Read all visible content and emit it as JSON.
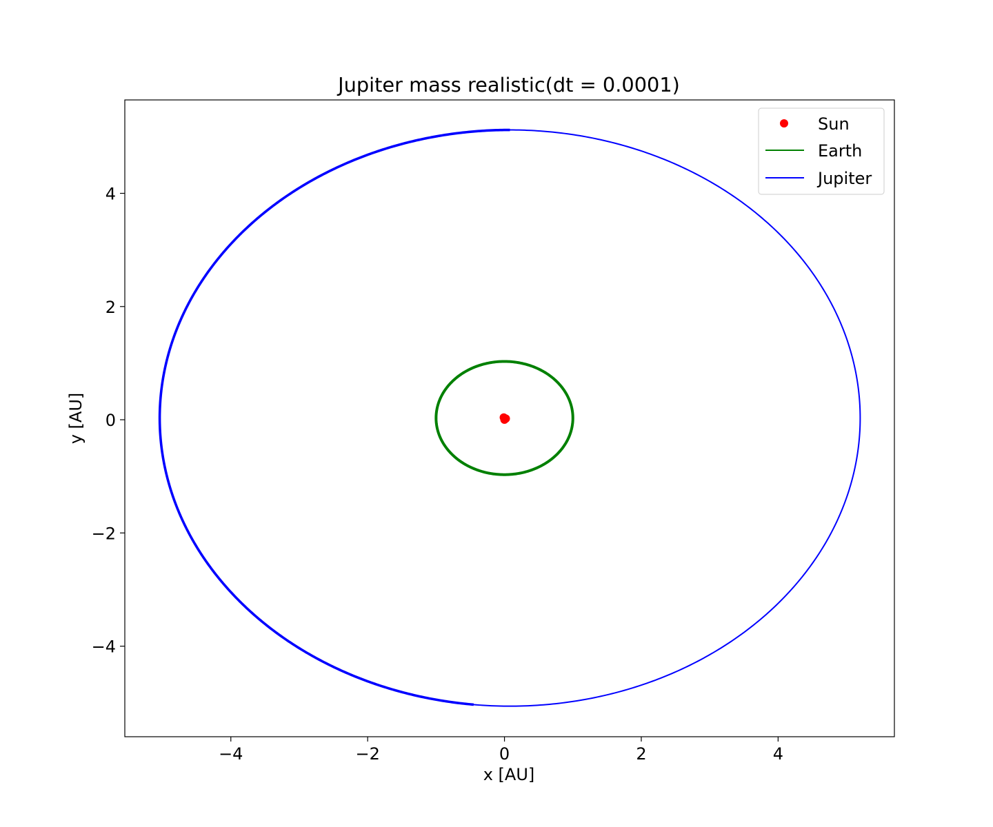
{
  "chart_data": {
    "type": "line",
    "title": "Jupiter mass realistic(dt = 0.0001)",
    "xlabel": "x [AU]",
    "ylabel": "y [AU]",
    "xlim": [
      -5.55,
      5.7
    ],
    "ylim": [
      -5.6,
      5.65
    ],
    "xticks": [
      -4,
      -2,
      0,
      2,
      4
    ],
    "yticks": [
      -4,
      -2,
      0,
      2,
      4
    ],
    "xtick_labels": [
      "−4",
      "−2",
      "0",
      "2",
      "4"
    ],
    "ytick_labels": [
      "−4",
      "−2",
      "0",
      "2",
      "4"
    ],
    "grid": false,
    "legend_position": "upper right",
    "series": [
      {
        "name": "Sun",
        "kind": "scatter",
        "color": "#ff0000",
        "points": [
          [
            0.0,
            0.0
          ],
          [
            0.0,
            0.03
          ],
          [
            0.02,
            0.02
          ],
          [
            -0.01,
            0.04
          ]
        ]
      },
      {
        "name": "Earth",
        "kind": "line",
        "color": "#008000",
        "orbit": {
          "cx": 0.0,
          "cy": 0.03,
          "a": 1.0,
          "b": 1.0
        }
      },
      {
        "name": "Jupiter",
        "kind": "line",
        "color": "#0000ff",
        "orbit": {
          "cx": 0.08,
          "cy": 0.03,
          "a": 5.12,
          "b": 5.09
        },
        "start_point": [
          -0.45,
          -5.03
        ]
      }
    ]
  }
}
